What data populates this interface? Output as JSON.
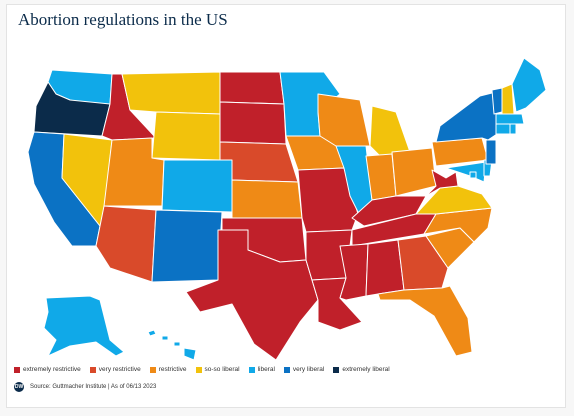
{
  "title": "Abortion regulations in the US",
  "legend": [
    {
      "label": "extremely restrictive",
      "color": "#c0202a"
    },
    {
      "label": "very restrictive",
      "color": "#d94a2a"
    },
    {
      "label": "restrictive",
      "color": "#ef8a16"
    },
    {
      "label": "so-so liberal",
      "color": "#f2c20c"
    },
    {
      "label": "liberal",
      "color": "#10a9e8"
    },
    {
      "label": "very liberal",
      "color": "#0b72c4"
    },
    {
      "label": "extremely liberal",
      "color": "#0b2b4a"
    }
  ],
  "source": "Source: Guttmacher Institute | As of 06/13 2023",
  "logo_text": "DW",
  "states": {
    "WA": "liberal",
    "OR": "extremely liberal",
    "CA": "very liberal",
    "NV": "so-so liberal",
    "ID": "extremely restrictive",
    "MT": "so-so liberal",
    "WY": "so-so liberal",
    "UT": "restrictive",
    "AZ": "very restrictive",
    "CO": "liberal",
    "NM": "very liberal",
    "ND": "extremely restrictive",
    "SD": "extremely restrictive",
    "NE": "very restrictive",
    "KS": "restrictive",
    "OK": "extremely restrictive",
    "TX": "extremely restrictive",
    "MN": "liberal",
    "IA": "restrictive",
    "MO": "extremely restrictive",
    "AR": "extremely restrictive",
    "LA": "extremely restrictive",
    "WI": "restrictive",
    "IL": "liberal",
    "MI": "so-so liberal",
    "IN": "restrictive",
    "KY": "extremely restrictive",
    "TN": "extremely restrictive",
    "MS": "extremely restrictive",
    "AL": "extremely restrictive",
    "OH": "restrictive",
    "WV": "extremely restrictive",
    "VA": "so-so liberal",
    "NC": "restrictive",
    "SC": "restrictive",
    "GA": "very restrictive",
    "FL": "restrictive",
    "PA": "restrictive",
    "NY": "very liberal",
    "VT": "very liberal",
    "NH": "so-so liberal",
    "ME": "liberal",
    "MA": "liberal",
    "CT": "liberal",
    "RI": "liberal",
    "NJ": "very liberal",
    "DE": "liberal",
    "MD": "liberal",
    "DC": "liberal",
    "AK": "liberal",
    "HI": "liberal"
  }
}
